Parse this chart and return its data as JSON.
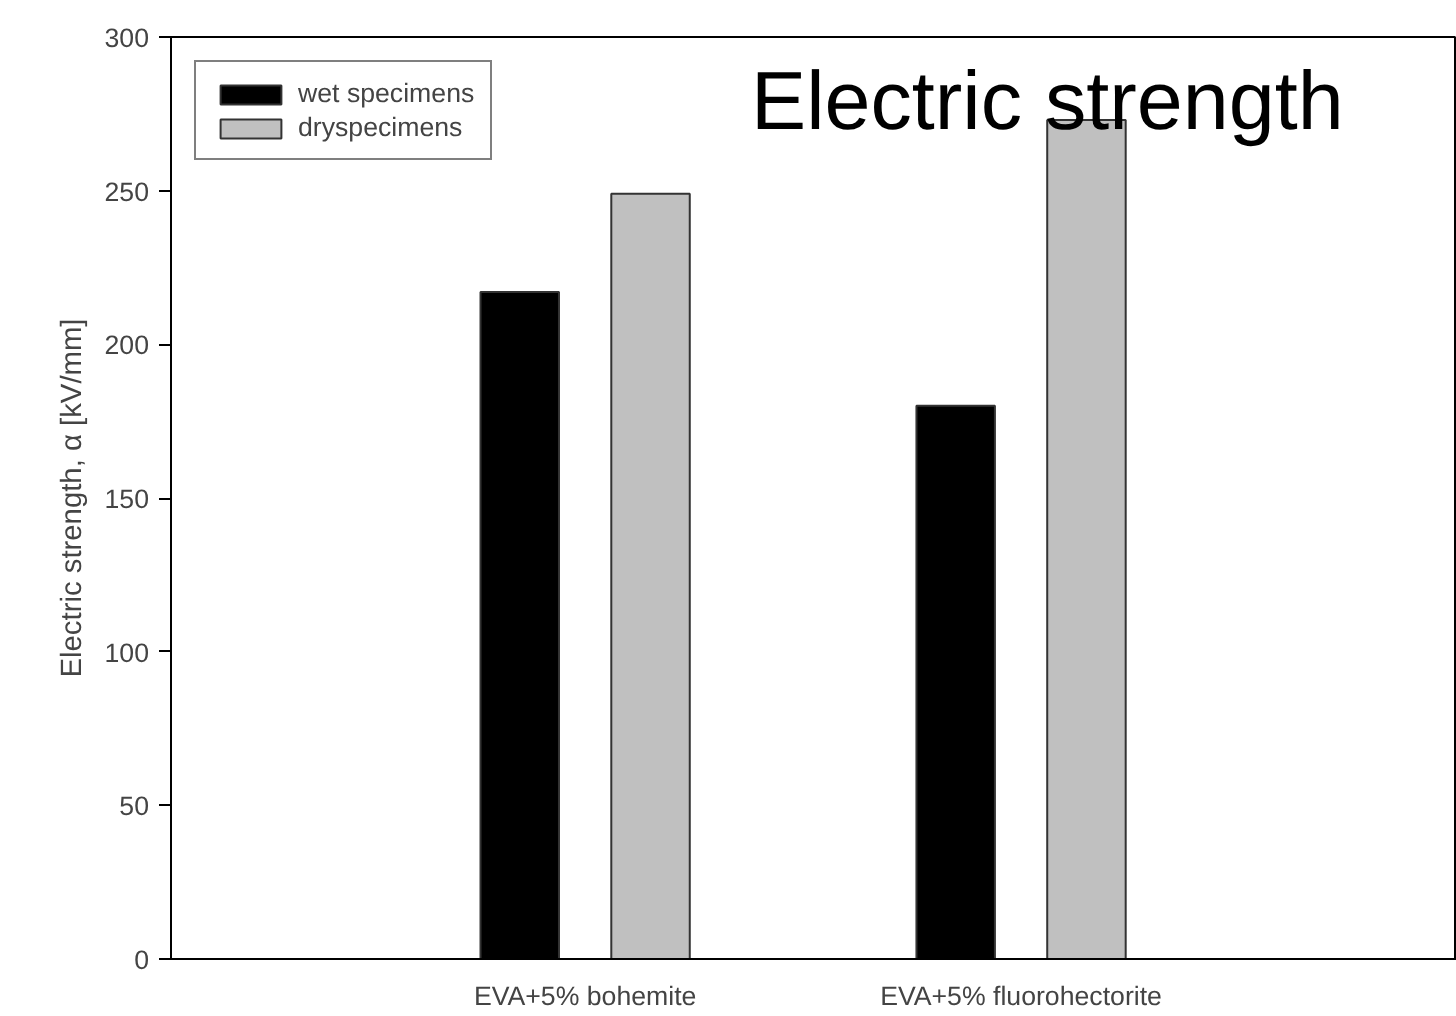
{
  "chart_data": {
    "type": "bar",
    "title": "Electric strength",
    "ylabel": "Electric strength, α [kV/mm]",
    "categories": [
      "EVA+5% bohemite",
      "EVA+5% fluorohectorite"
    ],
    "series": [
      {
        "name": "wet specimens",
        "color": "#000000",
        "values": [
          217,
          180
        ]
      },
      {
        "name": "dryspecimens",
        "color": "#c0c0c0",
        "values": [
          249,
          273
        ]
      }
    ],
    "ylim": [
      0,
      300
    ],
    "yticks": [
      0,
      50,
      100,
      150,
      200,
      250,
      300
    ],
    "grid": false,
    "legend": "top left"
  }
}
